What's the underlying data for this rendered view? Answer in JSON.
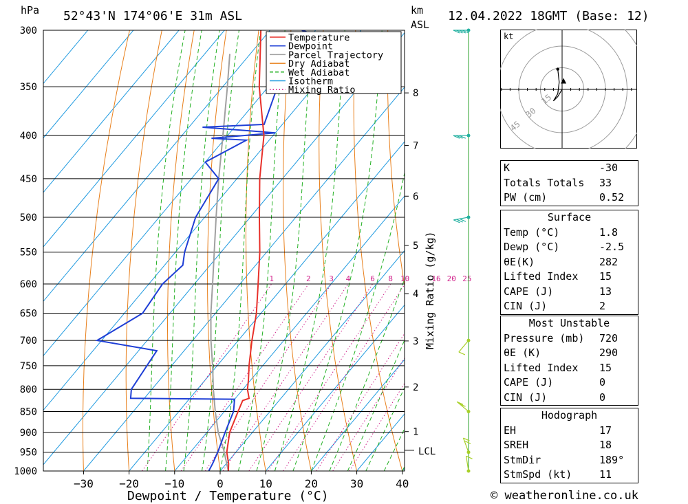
{
  "header": {
    "location": "52°43'N 174°06'E 31m ASL",
    "datetime": "12.04.2022 18GMT (Base: 12)",
    "pressure_unit": "hPa",
    "height_unit_1": "km",
    "height_unit_2": "ASL"
  },
  "chart_data": {
    "type": "line",
    "title": "52°43'N 174°06'E 31m ASL",
    "xlabel": "Dewpoint / Temperature (°C)",
    "ylabel": "hPa",
    "y2label": "Mixing Ratio (g/kg)",
    "xlim": [
      -40,
      40
    ],
    "ylim": [
      1000,
      300
    ],
    "yscale": "log",
    "x_ticks": [
      -30,
      -20,
      -10,
      0,
      10,
      20,
      30,
      40
    ],
    "pressure_levels": [
      300,
      350,
      400,
      450,
      500,
      550,
      600,
      650,
      700,
      750,
      800,
      850,
      900,
      950,
      1000
    ],
    "km_ticks": [
      {
        "km": "1",
        "p": 898
      },
      {
        "km": "2",
        "p": 795
      },
      {
        "km": "3",
        "p": 701
      },
      {
        "km": "4",
        "p": 616
      },
      {
        "km": "5",
        "p": 540
      },
      {
        "km": "6",
        "p": 472
      },
      {
        "km": "7",
        "p": 411
      },
      {
        "km": "8",
        "p": 356
      }
    ],
    "lcl": {
      "label": "LCL",
      "p": 945
    },
    "mixing_ratio_labels": [
      "1",
      "2",
      "3",
      "4",
      "6",
      "8",
      "10",
      "16",
      "20",
      "25"
    ],
    "legend": [
      {
        "name": "Temperature",
        "color": "#e8302a",
        "style": "solid"
      },
      {
        "name": "Dewpoint",
        "color": "#1f3fd6",
        "style": "solid"
      },
      {
        "name": "Parcel Trajectory",
        "color": "#a0a0a0",
        "style": "solid"
      },
      {
        "name": "Dry Adiabat",
        "color": "#e87f1a",
        "style": "solid"
      },
      {
        "name": "Wet Adiabat",
        "color": "#22b022",
        "style": "dashed"
      },
      {
        "name": "Isotherm",
        "color": "#1f9ae0",
        "style": "solid"
      },
      {
        "name": "Mixing Ratio",
        "color": "#d0208a",
        "style": "dotted"
      }
    ],
    "series": [
      {
        "name": "Temperature",
        "color": "#e8302a",
        "points": [
          [
            1000,
            1.8
          ],
          [
            980,
            0.5
          ],
          [
            950,
            -2
          ],
          [
            900,
            -5
          ],
          [
            850,
            -7
          ],
          [
            825,
            -8
          ],
          [
            820,
            -7
          ],
          [
            800,
            -9
          ],
          [
            780,
            -10.5
          ],
          [
            750,
            -13
          ],
          [
            700,
            -17
          ],
          [
            650,
            -21
          ],
          [
            600,
            -26
          ],
          [
            550,
            -31.5
          ],
          [
            500,
            -38
          ],
          [
            450,
            -45
          ],
          [
            400,
            -52
          ],
          [
            350,
            -62
          ],
          [
            300,
            -72
          ]
        ]
      },
      {
        "name": "Dewpoint",
        "color": "#1f3fd6",
        "points": [
          [
            1000,
            -2.5
          ],
          [
            980,
            -3
          ],
          [
            950,
            -4
          ],
          [
            900,
            -6
          ],
          [
            850,
            -8
          ],
          [
            822,
            -10
          ],
          [
            820,
            -33
          ],
          [
            800,
            -34.5
          ],
          [
            720,
            -36
          ],
          [
            700,
            -51
          ],
          [
            650,
            -46
          ],
          [
            600,
            -47
          ],
          [
            570,
            -46
          ],
          [
            550,
            -48
          ],
          [
            500,
            -52
          ],
          [
            450,
            -54
          ],
          [
            430,
            -60
          ],
          [
            405,
            -55
          ],
          [
            403,
            -63
          ],
          [
            397,
            -50
          ],
          [
            391,
            -67
          ],
          [
            388,
            -54
          ],
          [
            350,
            -58
          ],
          [
            330,
            -64
          ],
          [
            305,
            -58
          ],
          [
            300,
            -63
          ]
        ]
      },
      {
        "name": "Parcel Trajectory",
        "color": "#a0a0a0",
        "points": [
          [
            1000,
            1.8
          ],
          [
            945,
            -3
          ],
          [
            900,
            -7.5
          ],
          [
            850,
            -12
          ],
          [
            800,
            -16.5
          ],
          [
            750,
            -21
          ],
          [
            700,
            -26
          ],
          [
            650,
            -31
          ],
          [
            600,
            -36
          ],
          [
            550,
            -41.5
          ],
          [
            500,
            -47.5
          ],
          [
            450,
            -54
          ],
          [
            400,
            -61
          ],
          [
            350,
            -69
          ],
          [
            320,
            -74.5
          ]
        ]
      }
    ],
    "wind_barbs": [
      {
        "p": 1000,
        "dir_deg": 189,
        "kt": 11
      },
      {
        "p": 950,
        "dir_deg": 200,
        "kt": 15
      },
      {
        "p": 850,
        "dir_deg": 230,
        "kt": 15
      },
      {
        "p": 700,
        "dir_deg": 320,
        "kt": 10
      },
      {
        "p": 500,
        "dir_deg": 280,
        "kt": 25
      },
      {
        "p": 400,
        "dir_deg": 270,
        "kt": 30
      },
      {
        "p": 300,
        "dir_deg": 270,
        "kt": 35
      }
    ]
  },
  "hodograph": {
    "unit": "kt",
    "ring_labels": [
      "15",
      "30",
      "45"
    ],
    "trace": [
      [
        0,
        0
      ],
      [
        -3,
        -5
      ],
      [
        -5,
        -7
      ],
      [
        -6,
        -8
      ],
      [
        -3,
        -3
      ],
      [
        -2,
        5
      ],
      [
        -3,
        14
      ]
    ],
    "storm_motion": [
      1,
      5
    ]
  },
  "indices": {
    "rows": [
      {
        "label": "K",
        "value": "-30"
      },
      {
        "label": "Totals Totals",
        "value": "33"
      },
      {
        "label": "PW (cm)",
        "value": "0.52"
      }
    ]
  },
  "surface": {
    "title": "Surface",
    "rows": [
      {
        "label": "Temp (°C)",
        "value": "1.8"
      },
      {
        "label": "Dewp (°C)",
        "value": "-2.5"
      },
      {
        "label": "θE(K)",
        "value": "282"
      },
      {
        "label": "Lifted Index",
        "value": "15"
      },
      {
        "label": "CAPE (J)",
        "value": "13"
      },
      {
        "label": "CIN (J)",
        "value": "2"
      }
    ]
  },
  "most_unstable": {
    "title": "Most Unstable",
    "rows": [
      {
        "label": "Pressure (mb)",
        "value": "720"
      },
      {
        "label": "θE (K)",
        "value": "290"
      },
      {
        "label": "Lifted Index",
        "value": "15"
      },
      {
        "label": "CAPE (J)",
        "value": "0"
      },
      {
        "label": "CIN (J)",
        "value": "0"
      }
    ]
  },
  "hodograph_params": {
    "title": "Hodograph",
    "rows": [
      {
        "label": "EH",
        "value": "17"
      },
      {
        "label": "SREH",
        "value": "18"
      },
      {
        "label": "StmDir",
        "value": "189°"
      },
      {
        "label": "StmSpd (kt)",
        "value": "11"
      }
    ]
  },
  "credit": "© weatheronline.co.uk"
}
